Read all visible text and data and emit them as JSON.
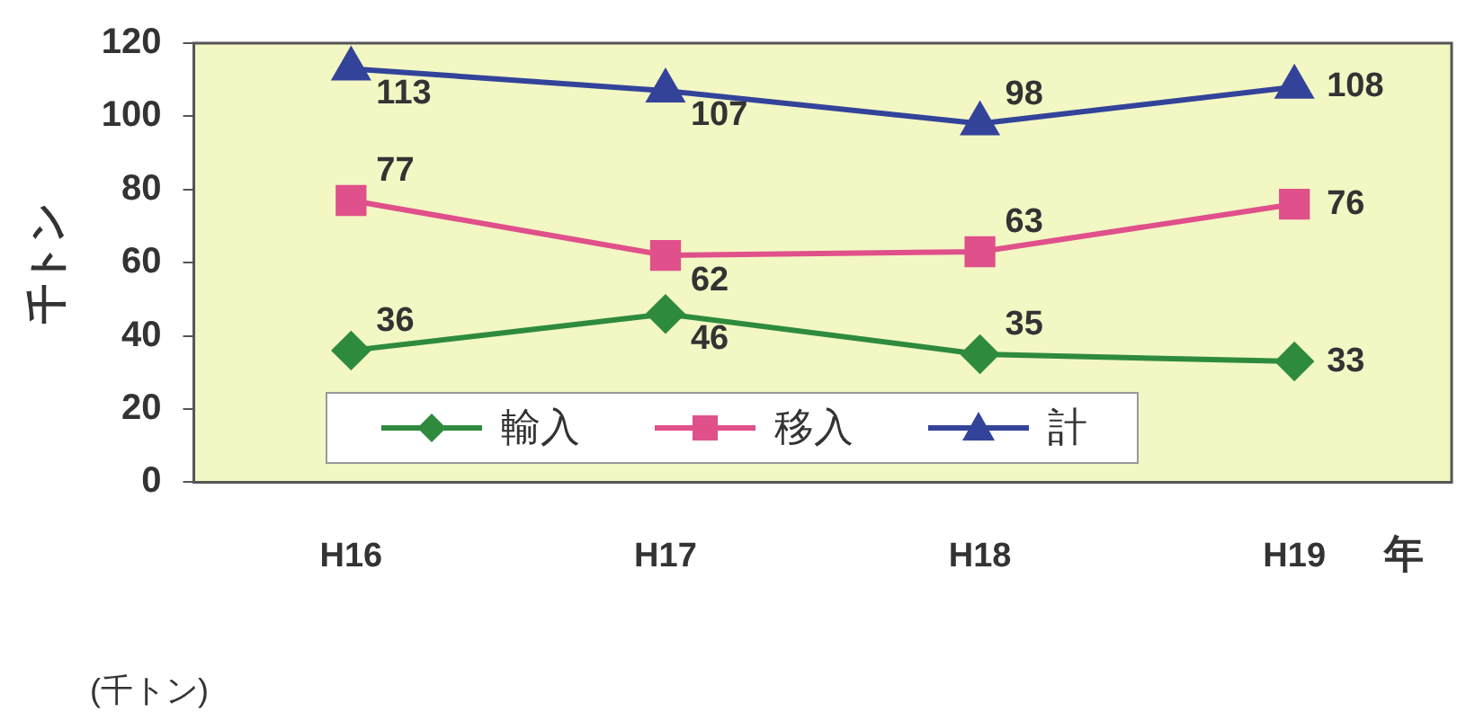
{
  "chart_data": {
    "type": "line",
    "ylabel": "千トン",
    "xlabel": "年",
    "annotations": [
      "(千トン)"
    ],
    "categories": [
      "H16",
      "H17",
      "H18",
      "H19"
    ],
    "series": [
      {
        "name": "輸入",
        "color": "#2e8b3e",
        "marker": "diamond",
        "values": [
          36,
          46,
          35,
          33
        ]
      },
      {
        "name": "移入",
        "color": "#e0508a",
        "marker": "square",
        "values": [
          77,
          62,
          63,
          76
        ]
      },
      {
        "name": "計",
        "color": "#34439a",
        "marker": "triangle",
        "values": [
          113,
          107,
          98,
          108
        ]
      }
    ],
    "ylim": [
      0,
      120
    ],
    "yticks": [
      0,
      20,
      40,
      60,
      80,
      100,
      120
    ],
    "grid": false,
    "legend": "bottom",
    "data_labels": true
  }
}
